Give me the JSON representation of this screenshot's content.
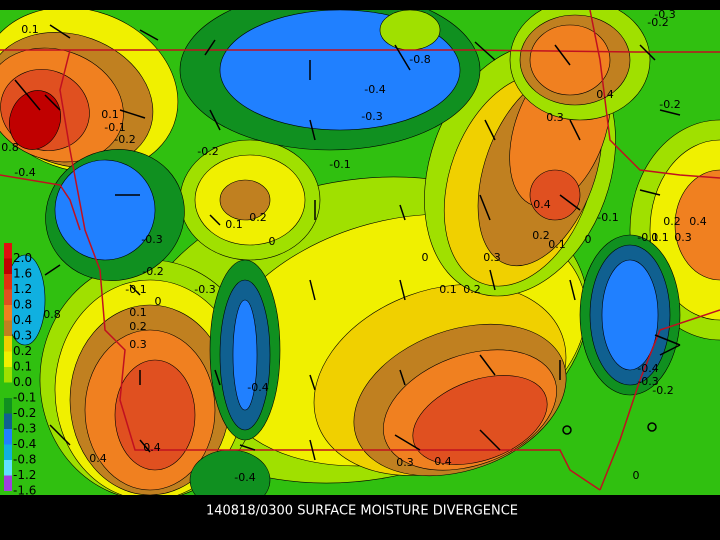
{
  "title": "140818/0300 SURFACE MOISTURE DIVERGENCE",
  "legend": {
    "entries": [
      {
        "label": "2.0",
        "color": "#e01010"
      },
      {
        "label": "1.6",
        "color": "#c00000"
      },
      {
        "label": "1.2",
        "color": "#e03010"
      },
      {
        "label": "0.8",
        "color": "#e05020"
      },
      {
        "label": "0.4",
        "color": "#f08020"
      },
      {
        "label": "0.3",
        "color": "#c08020"
      },
      {
        "label": "0.2",
        "color": "#f0d000"
      },
      {
        "label": "0.1",
        "color": "#f0f000"
      },
      {
        "label": "0.0",
        "color": "#a0e000"
      },
      {
        "label": "-0.1",
        "color": "#30c010"
      },
      {
        "label": "-0.2",
        "color": "#109020"
      },
      {
        "label": "-0.3",
        "color": "#106090"
      },
      {
        "label": "-0.4",
        "color": "#2080ff"
      },
      {
        "label": "-0.8",
        "color": "#10b0e0"
      },
      {
        "label": "-1.2",
        "color": "#60e0ff"
      },
      {
        "label": "-1.6",
        "color": "#a040e0"
      }
    ]
  },
  "contour_labels": [
    "0.1",
    "-0.3",
    "-0.2",
    "-0.8",
    "0.4",
    "-0.2",
    "-0.4",
    "-0.3",
    "0.1",
    "-0.1",
    "-0.2",
    "0.8",
    "0.3",
    "-0.2",
    "-0.1",
    "-0.4",
    "0.4",
    "0.2",
    "0.1",
    "0",
    "-0.1",
    "0.2",
    "0.4",
    "-0.3",
    "0.2",
    "0.1",
    "0",
    "-0.1",
    "0.1",
    "0.3",
    "0",
    "0.3",
    "-0.2",
    "-0.1",
    "0.1",
    "0.2",
    "0",
    "-0.3",
    "0.8",
    "0.1",
    "0.2",
    "0.3",
    "-0.4",
    "-0.3",
    "-0.4",
    "-0.2",
    "0.4",
    "0.4",
    "0.3",
    "0.4",
    "-0.4",
    "0"
  ]
}
